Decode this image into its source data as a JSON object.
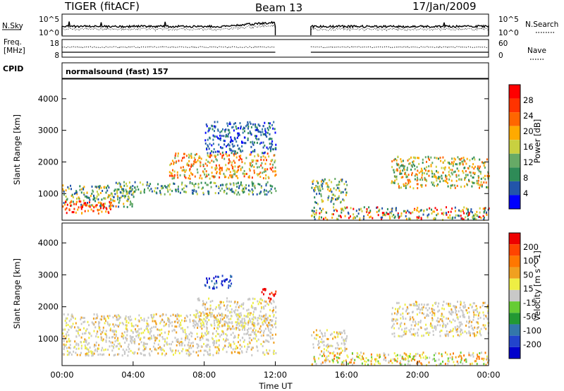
{
  "header": {
    "station": "TIGER (fitACF)",
    "beam": "Beam 13",
    "date": "17/Jan/2009"
  },
  "strip_labels": {
    "nsky": "N.Sky",
    "nsearch": "N.Search",
    "freq": "Freq.",
    "freq_unit": "[MHz]",
    "nave": "Nave",
    "cpid": "CPID",
    "program": "normalsound (fast) 157"
  },
  "strip_ticks": {
    "noise_left": [
      "10^5",
      "10^0"
    ],
    "noise_right": [
      "10^5",
      "10^0"
    ],
    "freq_left": [
      "18",
      "8"
    ],
    "freq_right": [
      "60",
      "0"
    ]
  },
  "time_axis": {
    "title": "Time UT",
    "ticks": [
      "00:00",
      "04:00",
      "08:00",
      "12:00",
      "16:00",
      "20:00",
      "00:00"
    ],
    "tick_hours": [
      0,
      4,
      8,
      12,
      16,
      20,
      24
    ],
    "data_gap_hours": [
      12.0,
      14.0
    ]
  },
  "colors": {
    "power_scale": [
      "#0000ff",
      "#2255aa",
      "#2e8b57",
      "#66aa66",
      "#c8d040",
      "#ffaa00",
      "#ff6600",
      "#ff3300",
      "#ff0000"
    ],
    "velocity_scale": [
      "#0000cc",
      "#2244cc",
      "#3377aa",
      "#229933",
      "#66cc33",
      "#c8c8c8",
      "#eeee44",
      "#f0a020",
      "#ff7700",
      "#ff4400",
      "#ee0000"
    ]
  },
  "chart_data": [
    {
      "type": "heatmap",
      "panel": "power",
      "ylabel": "Slant Range [km]",
      "yticks": [
        1000,
        2000,
        3000,
        4000
      ],
      "ylim": [
        180,
        4600
      ],
      "colorbar": {
        "label": "Power [dB]",
        "ticks": [
          "4",
          "8",
          "12",
          "16",
          "20",
          "24",
          "28"
        ],
        "range": [
          0,
          32
        ]
      },
      "echo_regions": [
        {
          "t": [
            0.0,
            4.0
          ],
          "range_km": [
            600,
            1300
          ],
          "level": "green-yellow"
        },
        {
          "t": [
            0.0,
            3.0
          ],
          "range_km": [
            400,
            800
          ],
          "level": "red"
        },
        {
          "t": [
            3.0,
            12.0
          ],
          "range_km": [
            1000,
            1400
          ],
          "level": "green"
        },
        {
          "t": [
            6.0,
            12.0
          ],
          "range_km": [
            1500,
            2300
          ],
          "level": "orange-red"
        },
        {
          "t": [
            8.0,
            12.0
          ],
          "range_km": [
            2300,
            3300
          ],
          "level": "blue"
        },
        {
          "t": [
            14.0,
            16.0
          ],
          "range_km": [
            700,
            1500
          ],
          "level": "yellow-green"
        },
        {
          "t": [
            18.5,
            24.0
          ],
          "range_km": [
            1200,
            2200
          ],
          "level": "orange"
        },
        {
          "t": [
            14.0,
            24.0
          ],
          "range_km": [
            200,
            600
          ],
          "level": "mixed"
        }
      ]
    },
    {
      "type": "heatmap",
      "panel": "velocity",
      "ylabel": "Slant Range [km]",
      "yticks": [
        1000,
        2000,
        3000,
        4000
      ],
      "ylim": [
        180,
        4600
      ],
      "colorbar": {
        "label": "Velocity [m s^-1]",
        "ticks": [
          "200",
          "100",
          "50",
          "15",
          "-15",
          "-50",
          "-100",
          "-200"
        ],
        "range": [
          -250,
          250
        ]
      },
      "echo_regions": [
        {
          "t": [
            0.0,
            12.0
          ],
          "range_km": [
            500,
            1800
          ],
          "level": "gray"
        },
        {
          "t": [
            7.5,
            12.0
          ],
          "range_km": [
            1400,
            2300
          ],
          "level": "gray"
        },
        {
          "t": [
            11.2,
            12.0
          ],
          "range_km": [
            2200,
            2600
          ],
          "level": "red"
        },
        {
          "t": [
            8.0,
            9.5
          ],
          "range_km": [
            2600,
            3000
          ],
          "level": "blue"
        },
        {
          "t": [
            14.0,
            16.0
          ],
          "range_km": [
            600,
            1300
          ],
          "level": "gray"
        },
        {
          "t": [
            18.5,
            24.0
          ],
          "range_km": [
            1100,
            2200
          ],
          "level": "gray"
        },
        {
          "t": [
            14.0,
            24.0
          ],
          "range_km": [
            200,
            600
          ],
          "level": "yellow-orange"
        }
      ]
    }
  ]
}
